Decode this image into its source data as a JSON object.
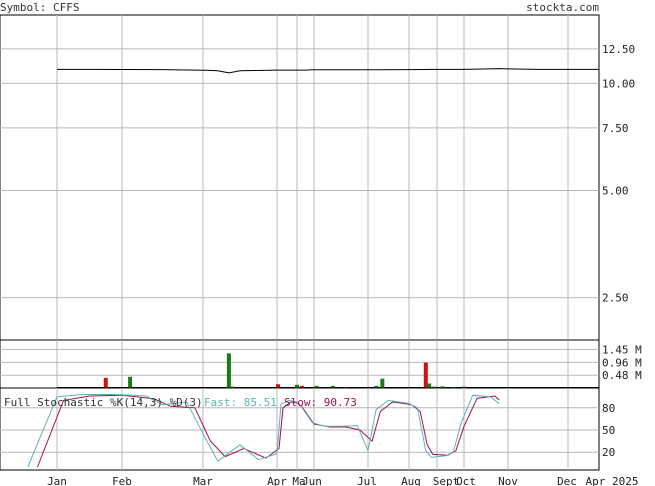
{
  "header": {
    "symbol_label": "Symbol: CFFS",
    "site": "stockta.com"
  },
  "chart_data": [
    {
      "type": "line",
      "name": "price",
      "y_scale": "log",
      "ylim": [
        1.9,
        13.5
      ],
      "y_ticks": [
        "12.50",
        "10.00",
        "7.50",
        "5.00",
        "2.50"
      ],
      "y_tick_values": [
        12.5,
        10.0,
        7.5,
        5.0,
        2.5
      ],
      "x_labels": [
        "Jan",
        "Feb",
        "Mar",
        "Apr",
        "May",
        "Jun",
        "Jul",
        "Aug",
        "Sept",
        "Oct",
        "Nov",
        "Dec",
        "Apr 2025"
      ],
      "x_label_text": [
        "Jan",
        "Feb",
        "Mar",
        "Apr",
        "Ma",
        "Jun",
        "Jul",
        "Aug",
        "Sept",
        "Oct",
        "Nov",
        "Dec",
        "Apr 2025"
      ],
      "points": [
        [
          0.0,
          10.95
        ],
        [
          0.5,
          10.95
        ],
        [
          1.0,
          10.94
        ],
        [
          1.5,
          10.93
        ],
        [
          1.9,
          10.9
        ],
        [
          2.05,
          10.88
        ],
        [
          2.2,
          10.85
        ],
        [
          2.35,
          10.7
        ],
        [
          2.5,
          10.85
        ],
        [
          3.0,
          10.9
        ],
        [
          3.5,
          10.9
        ],
        [
          4.0,
          10.9
        ],
        [
          4.5,
          10.9
        ],
        [
          5.0,
          10.92
        ],
        [
          6.0,
          10.92
        ],
        [
          7.0,
          10.93
        ],
        [
          8.0,
          10.95
        ],
        [
          9.0,
          10.95
        ],
        [
          9.8,
          11.0
        ],
        [
          10.0,
          10.98
        ],
        [
          10.5,
          10.95
        ],
        [
          11.0,
          10.95
        ],
        [
          12.0,
          10.95
        ]
      ]
    },
    {
      "type": "bar",
      "name": "volume",
      "y_ticks": [
        "1.45 M",
        "0.96 M",
        "0.48 M"
      ],
      "y_tick_values": [
        1.45,
        0.96,
        0.48
      ],
      "ylim": [
        0,
        1.8
      ],
      "bars": [
        {
          "x": 0.75,
          "v": 0.38,
          "dir": "down"
        },
        {
          "x": 1.1,
          "v": 0.42,
          "dir": "up"
        },
        {
          "x": 2.35,
          "v": 1.3,
          "dir": "up"
        },
        {
          "x": 2.4,
          "v": 0.05,
          "dir": "up"
        },
        {
          "x": 3.05,
          "v": 0.14,
          "dir": "down"
        },
        {
          "x": 4.0,
          "v": 0.12,
          "dir": "up"
        },
        {
          "x": 4.3,
          "v": 0.08,
          "dir": "down"
        },
        {
          "x": 5.05,
          "v": 0.08,
          "dir": "up"
        },
        {
          "x": 5.35,
          "v": 0.08,
          "dir": "up"
        },
        {
          "x": 5.6,
          "v": 0.04,
          "dir": "up"
        },
        {
          "x": 6.2,
          "v": 0.08,
          "dir": "up"
        },
        {
          "x": 6.35,
          "v": 0.35,
          "dir": "up"
        },
        {
          "x": 7.6,
          "v": 0.95,
          "dir": "down"
        },
        {
          "x": 7.72,
          "v": 0.17,
          "dir": "up"
        },
        {
          "x": 7.9,
          "v": 0.05,
          "dir": "up"
        },
        {
          "x": 8.2,
          "v": 0.06,
          "dir": "up"
        },
        {
          "x": 8.6,
          "v": 0.04,
          "dir": "up"
        },
        {
          "x": 9.0,
          "v": 0.05,
          "dir": "up"
        }
      ]
    },
    {
      "type": "line",
      "name": "stochastic",
      "title": "Full Stochastic %K(14,3) %D(3)",
      "fast_label": "Fast: 85.51",
      "slow_label": "Slow: 90.73",
      "ylim": [
        0,
        100
      ],
      "y_ticks": [
        "80",
        "50",
        "20"
      ],
      "y_tick_values": [
        80,
        50,
        20
      ],
      "fast": [
        [
          -0.45,
          0
        ],
        [
          0.0,
          95
        ],
        [
          0.4,
          98
        ],
        [
          0.9,
          98
        ],
        [
          1.3,
          96
        ],
        [
          1.5,
          84
        ],
        [
          1.8,
          88
        ],
        [
          2.0,
          45
        ],
        [
          2.2,
          8
        ],
        [
          2.5,
          30
        ],
        [
          2.75,
          10
        ],
        [
          3.0,
          18
        ],
        [
          3.2,
          85
        ],
        [
          3.6,
          90
        ],
        [
          4.0,
          88
        ],
        [
          4.3,
          80
        ],
        [
          4.9,
          60
        ],
        [
          5.2,
          55
        ],
        [
          5.5,
          55
        ],
        [
          5.8,
          56
        ],
        [
          6.0,
          22
        ],
        [
          6.2,
          78
        ],
        [
          6.5,
          90
        ],
        [
          7.0,
          86
        ],
        [
          7.3,
          80
        ],
        [
          7.6,
          22
        ],
        [
          7.8,
          13
        ],
        [
          8.3,
          15
        ],
        [
          8.6,
          20
        ],
        [
          8.9,
          60
        ],
        [
          9.2,
          97
        ],
        [
          9.6,
          95
        ],
        [
          9.8,
          85.5
        ]
      ],
      "slow": [
        [
          -0.3,
          0
        ],
        [
          0.1,
          90
        ],
        [
          0.5,
          96
        ],
        [
          1.0,
          97
        ],
        [
          1.4,
          92
        ],
        [
          1.6,
          82
        ],
        [
          1.9,
          80
        ],
        [
          2.1,
          35
        ],
        [
          2.3,
          14
        ],
        [
          2.55,
          25
        ],
        [
          2.85,
          12
        ],
        [
          3.1,
          25
        ],
        [
          3.3,
          80
        ],
        [
          3.7,
          88
        ],
        [
          4.1,
          86
        ],
        [
          4.4,
          78
        ],
        [
          5.0,
          58
        ],
        [
          5.3,
          54
        ],
        [
          5.6,
          54
        ],
        [
          5.85,
          50
        ],
        [
          6.1,
          35
        ],
        [
          6.3,
          75
        ],
        [
          6.6,
          88
        ],
        [
          7.1,
          84
        ],
        [
          7.4,
          75
        ],
        [
          7.65,
          30
        ],
        [
          7.85,
          17
        ],
        [
          8.4,
          16
        ],
        [
          8.7,
          22
        ],
        [
          9.0,
          55
        ],
        [
          9.3,
          93
        ],
        [
          9.7,
          96
        ],
        [
          9.8,
          90.7
        ]
      ]
    }
  ]
}
